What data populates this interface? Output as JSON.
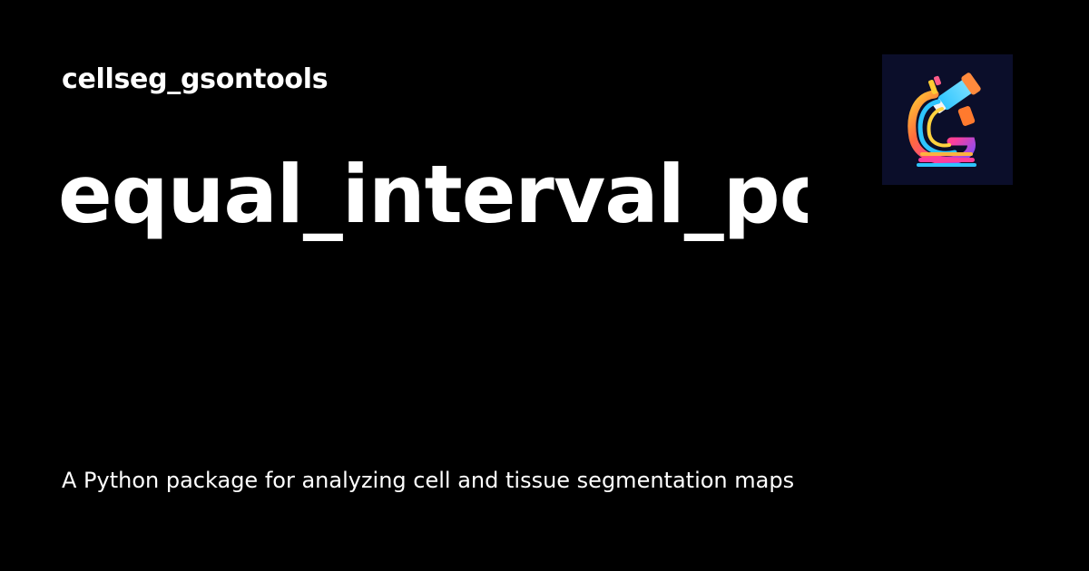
{
  "site": {
    "name": "cellseg_gsontools"
  },
  "page": {
    "title": "equal_interval_poi",
    "description": "A Python package for analyzing cell and tissue segmentation maps"
  },
  "logo": {
    "icon": "microscope-g-logo-icon",
    "background": "#0b0e2a"
  },
  "colors": {
    "background": "#000000",
    "text": "#ffffff"
  }
}
